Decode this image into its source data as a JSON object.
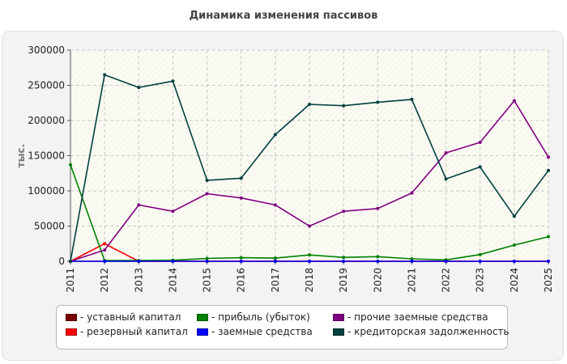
{
  "chart_data": {
    "type": "line",
    "title": "Динамика изменения пассивов",
    "ylabel": "тыс.",
    "xlabel": "",
    "ylim": [
      0,
      300000
    ],
    "yticks": [
      0,
      50000,
      100000,
      150000,
      200000,
      250000,
      300000
    ],
    "x": [
      "2011",
      "2012",
      "2013",
      "2014",
      "2015",
      "2016",
      "2017",
      "2018",
      "2019",
      "2020",
      "2021",
      "2022",
      "2023",
      "2024",
      "2025"
    ],
    "grid": true,
    "legend_position": "bottom",
    "series": [
      {
        "name": "уставный капитал",
        "color": "#7a0000",
        "values": [
          0,
          0,
          0,
          0,
          0,
          0,
          0,
          0,
          0,
          0,
          0,
          0,
          0,
          0,
          0
        ]
      },
      {
        "name": "резервный капитал",
        "color": "#ff0000",
        "values": [
          0,
          25000,
          0,
          0,
          0,
          0,
          0,
          0,
          0,
          0,
          0,
          0,
          0,
          0,
          0
        ]
      },
      {
        "name": "прибыль (убыток)",
        "color": "#008000",
        "values": [
          137000,
          1000,
          1000,
          1500,
          4000,
          5000,
          4500,
          9000,
          5500,
          6500,
          3500,
          2000,
          9500,
          23000,
          35000
        ]
      },
      {
        "name": "заемные средства",
        "color": "#0000ff",
        "values": [
          0,
          0,
          0,
          0,
          0,
          0,
          0,
          0,
          0,
          0,
          0,
          0,
          0,
          0,
          0
        ]
      },
      {
        "name": "прочие заемные средства",
        "color": "#800080",
        "values": [
          0,
          16000,
          80000,
          71000,
          96000,
          90000,
          80000,
          50000,
          71000,
          75000,
          97000,
          154000,
          169000,
          228000,
          148000
        ]
      },
      {
        "name": "кредиторская задолженность",
        "color": "#004040",
        "values": [
          0,
          265000,
          247000,
          256000,
          115000,
          118000,
          180000,
          223000,
          221000,
          226000,
          230000,
          117000,
          134000,
          64000,
          129000
        ]
      }
    ]
  }
}
